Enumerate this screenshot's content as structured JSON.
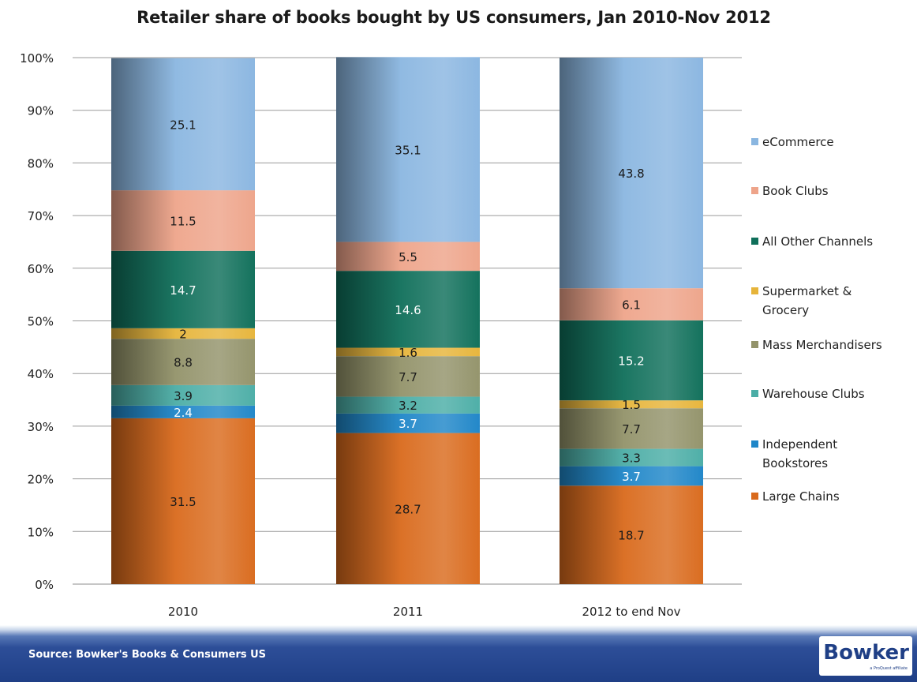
{
  "chart_data": {
    "type": "bar",
    "stacked": true,
    "percent": true,
    "title": "Retailer share of books bought by US consumers, Jan 2010-Nov 2012",
    "categories": [
      "2010",
      "2011",
      "2012 to end Nov"
    ],
    "ylim": [
      0,
      100
    ],
    "y_ticks": [
      "0%",
      "10%",
      "20%",
      "30%",
      "40%",
      "50%",
      "60%",
      "70%",
      "80%",
      "90%",
      "100%"
    ],
    "grid": true,
    "legend_position": "right",
    "series": [
      {
        "name": "Large Chains",
        "color": "#d96a1c",
        "values": [
          31.5,
          28.7,
          18.7
        ]
      },
      {
        "name": "Independent Bookstores",
        "color": "#1e86c8",
        "values": [
          2.4,
          3.7,
          3.7
        ]
      },
      {
        "name": "Warehouse Clubs",
        "color": "#4bada6",
        "values": [
          3.9,
          3.2,
          3.3
        ]
      },
      {
        "name": "Mass Merchandisers",
        "color": "#93936a",
        "values": [
          8.8,
          7.7,
          7.7
        ]
      },
      {
        "name": "Supermarket & Grocery",
        "color": "#e6b43a",
        "values": [
          2,
          1.6,
          1.5
        ]
      },
      {
        "name": "All Other Channels",
        "color": "#0f6f5a",
        "values": [
          14.7,
          14.6,
          15.2
        ]
      },
      {
        "name": "Book Clubs",
        "color": "#eea48a",
        "values": [
          11.5,
          5.5,
          6.1
        ]
      },
      {
        "name": "eCommerce",
        "color": "#8ab6e0",
        "values": [
          25.1,
          35.1,
          43.8
        ]
      }
    ],
    "legend": [
      {
        "lines": [
          "eCommerce"
        ],
        "color": "#8ab6e0"
      },
      {
        "lines": [
          "Book Clubs"
        ],
        "color": "#eea48a"
      },
      {
        "lines": [
          "All Other Channels"
        ],
        "color": "#0f6f5a"
      },
      {
        "lines": [
          "Supermarket &",
          "Grocery"
        ],
        "color": "#e6b43a"
      },
      {
        "lines": [
          "Mass Merchandisers"
        ],
        "color": "#93936a"
      },
      {
        "lines": [
          "Warehouse Clubs"
        ],
        "color": "#4bada6"
      },
      {
        "lines": [
          "Independent",
          "Bookstores"
        ],
        "color": "#1e86c8"
      },
      {
        "lines": [
          "Large Chains"
        ],
        "color": "#d96a1c"
      }
    ]
  },
  "footer": {
    "source": "Source: Bowker's Books & Consumers US",
    "logo": "Bowker",
    "logo_sub": "a ProQuest affiliate"
  }
}
